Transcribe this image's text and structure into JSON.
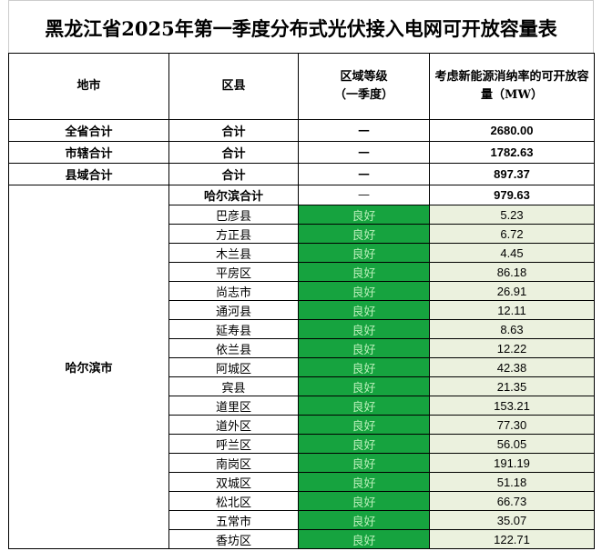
{
  "title": "黑龙江省2025年第一季度分布式光伏接入电网可开放容量表",
  "table": {
    "headers": [
      "地市",
      "区县",
      "区域等级\n（一季度）",
      "考虑新能源消纳率的可开放容量（MW）"
    ],
    "summary_rows": [
      [
        "全省合计",
        "合计",
        "—",
        "2680.00"
      ],
      [
        "市辖合计",
        "合计",
        "—",
        "1782.63"
      ],
      [
        "县域合计",
        "合计",
        "—",
        "897.37"
      ]
    ],
    "city": {
      "name": "哈尔滨市",
      "total": [
        "哈尔滨合计",
        "—",
        "979.63"
      ],
      "rows": [
        [
          "巴彦县",
          "良好",
          "5.23"
        ],
        [
          "方正县",
          "良好",
          "6.72"
        ],
        [
          "木兰县",
          "良好",
          "4.45"
        ],
        [
          "平房区",
          "良好",
          "86.18"
        ],
        [
          "尚志市",
          "良好",
          "26.91"
        ],
        [
          "通河县",
          "良好",
          "12.11"
        ],
        [
          "延寿县",
          "良好",
          "8.63"
        ],
        [
          "依兰县",
          "良好",
          "12.22"
        ],
        [
          "阿城区",
          "良好",
          "42.38"
        ],
        [
          "宾县",
          "良好",
          "21.35"
        ],
        [
          "道里区",
          "良好",
          "153.21"
        ],
        [
          "道外区",
          "良好",
          "77.30"
        ],
        [
          "呼兰区",
          "良好",
          "56.05"
        ],
        [
          "南岗区",
          "良好",
          "191.19"
        ],
        [
          "双城区",
          "良好",
          "51.18"
        ],
        [
          "松北区",
          "良好",
          "66.73"
        ],
        [
          "五常市",
          "良好",
          "35.07"
        ],
        [
          "香坊区",
          "良好",
          "122.71"
        ]
      ]
    }
  }
}
